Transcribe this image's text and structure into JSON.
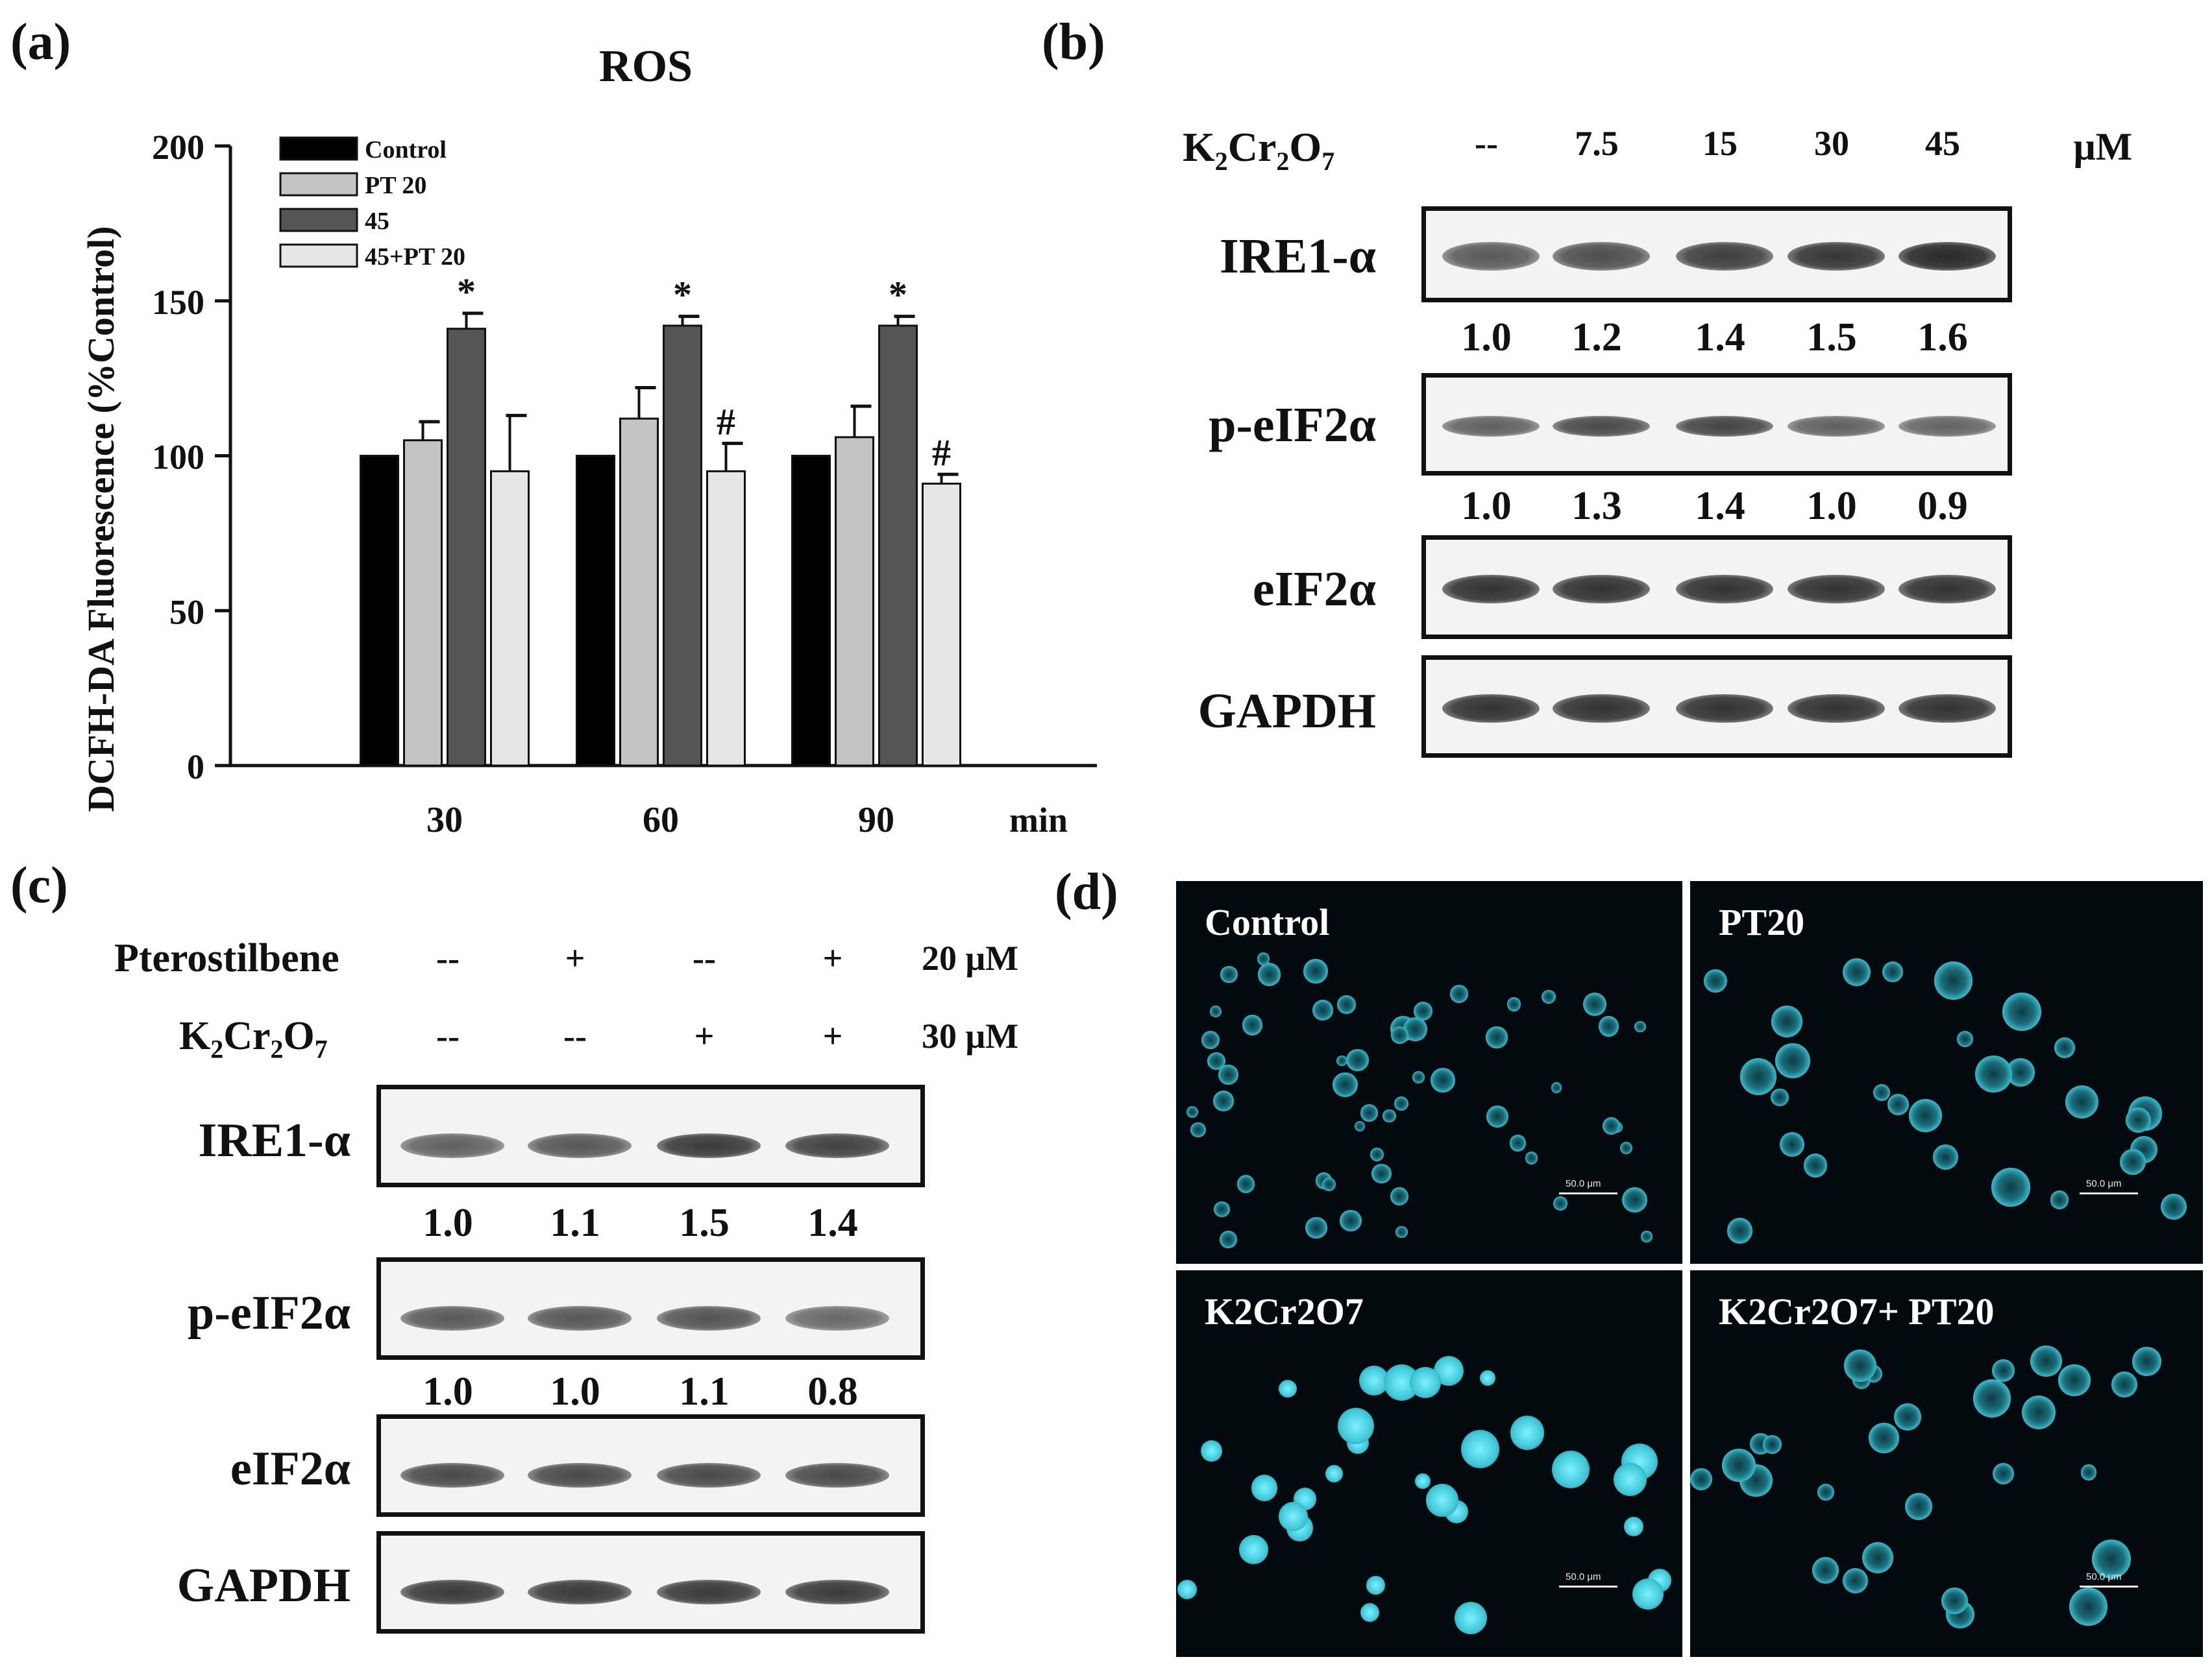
{
  "panels": {
    "a": {
      "letter": "(a)",
      "chart_data": {
        "type": "bar",
        "title": "ROS",
        "ylabel": "DCFH-DA Fluorescence (%Control)",
        "xlabel": "",
        "x_unit": "min",
        "categories": [
          "30",
          "60",
          "90"
        ],
        "ylim": [
          0,
          200
        ],
        "yticks": [
          "0",
          "50",
          "100",
          "150",
          "200"
        ],
        "legend_position": "top-left",
        "series": [
          {
            "name": "Control",
            "color": "#000000",
            "values": [
              100,
              100,
              100
            ],
            "errors": [
              0,
              0,
              0
            ]
          },
          {
            "name": "PT 20",
            "color": "#c4c4c4",
            "values": [
              105,
              112,
              106
            ],
            "errors": [
              6,
              10,
              10
            ]
          },
          {
            "name": "45",
            "color": "#555555",
            "values": [
              141,
              142,
              142
            ],
            "errors": [
              5,
              3,
              3
            ]
          },
          {
            "name": "45+PT 20",
            "color": "#e6e6e6",
            "values": [
              95,
              95,
              91
            ],
            "errors": [
              18,
              9,
              3
            ]
          }
        ],
        "annotations": [
          {
            "series": 2,
            "category": 0,
            "text": "*"
          },
          {
            "series": 2,
            "category": 1,
            "text": "*"
          },
          {
            "series": 2,
            "category": 2,
            "text": "*"
          },
          {
            "series": 3,
            "category": 1,
            "text": "#"
          },
          {
            "series": 3,
            "category": 2,
            "text": "#"
          }
        ]
      }
    },
    "b": {
      "letter": "(b)",
      "treatment_label": "K2Cr2O7",
      "doses": [
        "--",
        "7.5",
        "15",
        "30",
        "45"
      ],
      "unit": "μM",
      "blots": [
        {
          "name": "IRE1-α",
          "quant": [
            "1.0",
            "1.2",
            "1.4",
            "1.5",
            "1.6"
          ],
          "intensity": [
            0.55,
            0.62,
            0.72,
            0.78,
            0.86
          ]
        },
        {
          "name": "p-eIF2α",
          "quant": [
            "1.0",
            "1.3",
            "1.4",
            "1.0",
            "0.9"
          ],
          "intensity": [
            0.5,
            0.65,
            0.68,
            0.5,
            0.48
          ]
        },
        {
          "name": "eIF2α",
          "quant": [],
          "intensity": [
            0.8,
            0.8,
            0.8,
            0.8,
            0.8
          ]
        },
        {
          "name": "GAPDH",
          "quant": [],
          "intensity": [
            0.8,
            0.8,
            0.8,
            0.8,
            0.8
          ]
        }
      ]
    },
    "c": {
      "letter": "(c)",
      "rows": [
        {
          "label": "Pterostilbene",
          "values": [
            "--",
            "+",
            "--",
            "+"
          ],
          "dose": "20 μM"
        },
        {
          "label": "K2Cr2O7",
          "values": [
            "--",
            "--",
            "+",
            "+"
          ],
          "dose": "30 μM"
        }
      ],
      "blots": [
        {
          "name": "IRE1-α",
          "quant": [
            "1.0",
            "1.1",
            "1.5",
            "1.4"
          ],
          "intensity": [
            0.5,
            0.56,
            0.75,
            0.7
          ]
        },
        {
          "name": "p-eIF2α",
          "quant": [
            "1.0",
            "1.0",
            "1.1",
            "0.8"
          ],
          "intensity": [
            0.55,
            0.56,
            0.58,
            0.45
          ]
        },
        {
          "name": "eIF2α",
          "quant": [],
          "intensity": [
            0.65,
            0.65,
            0.65,
            0.65
          ]
        },
        {
          "name": "GAPDH",
          "quant": [],
          "intensity": [
            0.75,
            0.75,
            0.75,
            0.75
          ]
        }
      ]
    },
    "d": {
      "letter": "(d)",
      "images": [
        {
          "label": "Control",
          "scale": "50.0 μm"
        },
        {
          "label": "PT20",
          "scale": "50.0 μm"
        },
        {
          "label": "K2Cr2O7",
          "scale": "50.0 μm"
        },
        {
          "label": "K2Cr2O7+ PT20",
          "scale": "50.0 μm"
        }
      ],
      "cell_color": "#3fc8d8"
    }
  }
}
